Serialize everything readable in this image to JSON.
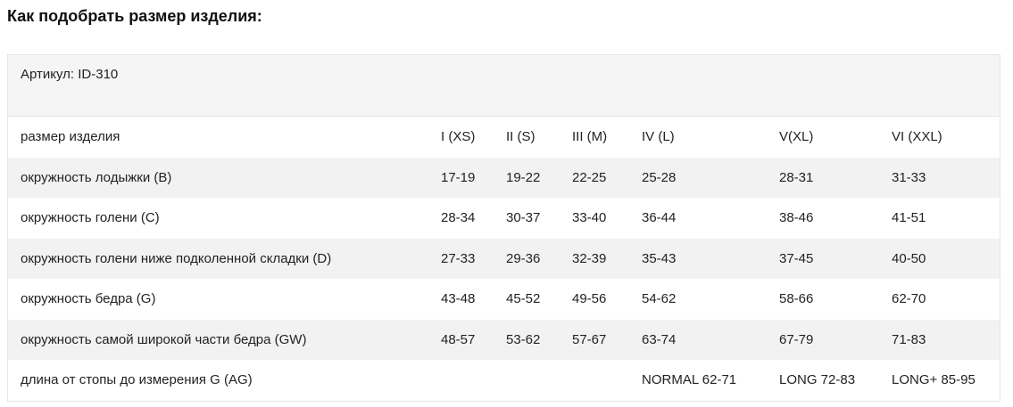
{
  "title": "Как подобрать размер изделия:",
  "sku": "Артикул: ID-310",
  "rows": [
    [
      "размер изделия",
      "I (XS)",
      "II (S)",
      "III (M)",
      "IV (L)",
      "V(XL)",
      "VI (XXL)"
    ],
    [
      "окружность лодыжки (B)",
      "17-19",
      "19-22",
      "22-25",
      "25-28",
      "28-31",
      "31-33"
    ],
    [
      "окружность  голени (C)",
      "28-34",
      "30-37",
      "33-40",
      "36-44",
      "38-46",
      "41-51"
    ],
    [
      "окружность голени ниже подколенной складки (D)",
      "27-33",
      "29-36",
      "32-39",
      "35-43",
      "37-45",
      "40-50"
    ],
    [
      "окружность бедра (G)",
      "43-48",
      "45-52",
      "49-56",
      "54-62",
      "58-66",
      "62-70"
    ],
    [
      "окружность  самой широкой части бедра (GW)",
      "48-57",
      "53-62",
      "57-67",
      "63-74",
      "67-79",
      "71-83"
    ],
    [
      "длина от стопы до измерения G (AG)",
      "",
      "",
      "",
      "NORMAL 62-71",
      "LONG 72-83",
      "LONG+ 85-95"
    ]
  ]
}
